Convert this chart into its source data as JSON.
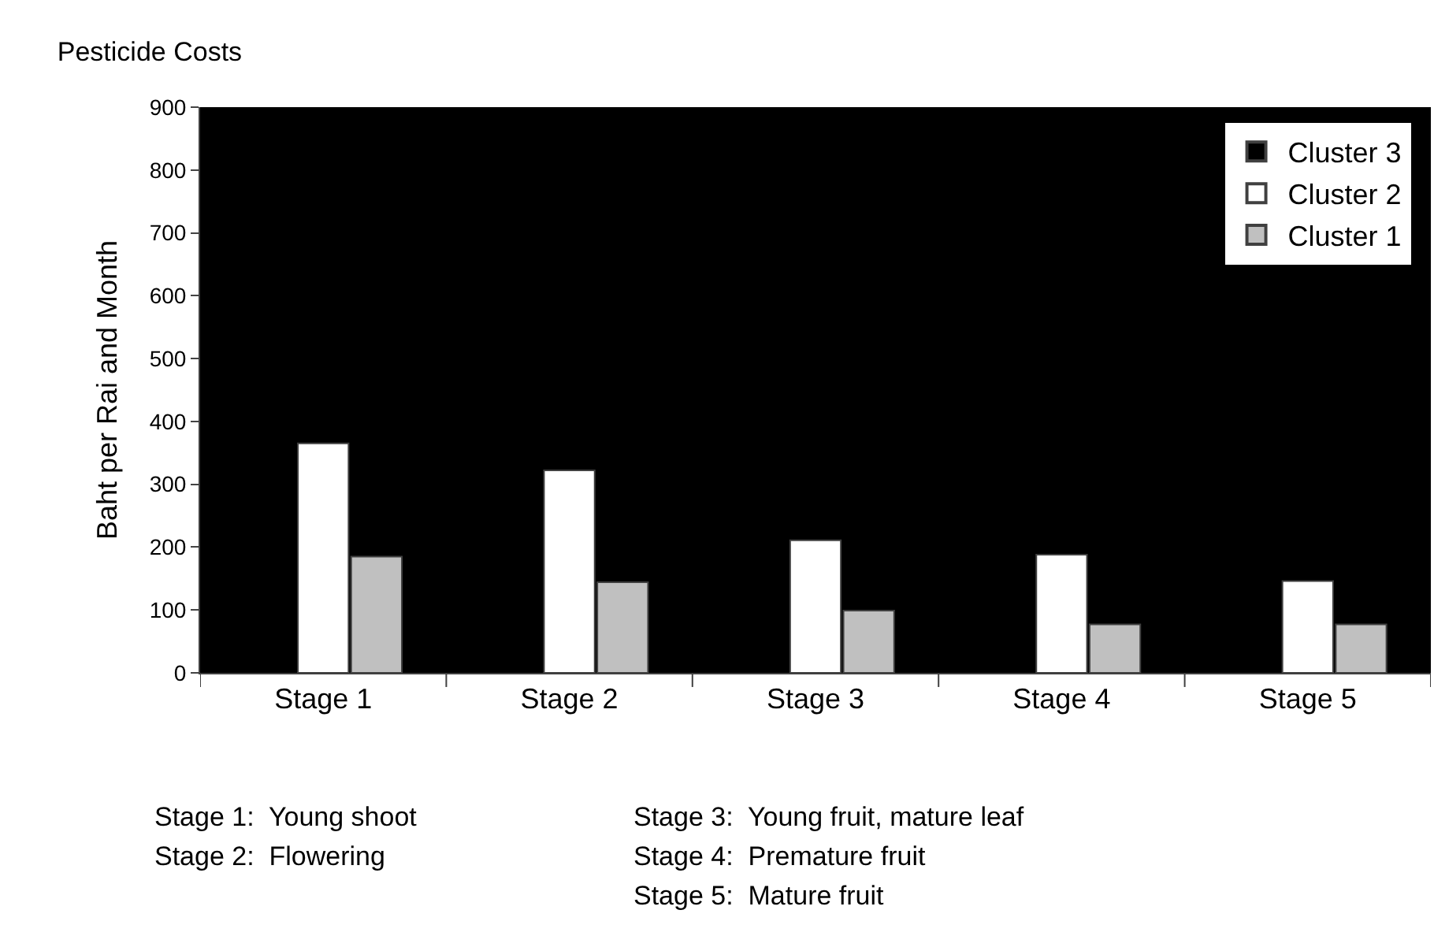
{
  "chart_data": {
    "type": "bar",
    "title": "Pesticide Costs",
    "ylabel": "Baht per Rai and Month",
    "categories": [
      "Stage 1",
      "Stage 2",
      "Stage 3",
      "Stage 4",
      "Stage 5"
    ],
    "series": [
      {
        "name": "Cluster 3",
        "color": "#000000",
        "values": [
          null,
          null,
          null,
          null,
          null
        ]
      },
      {
        "name": "Cluster 2",
        "color": "#ffffff",
        "values": [
          365,
          322,
          211,
          188,
          146
        ]
      },
      {
        "name": "Cluster 1",
        "color": "#c0c0c0",
        "values": [
          185,
          144,
          99,
          77,
          77
        ]
      }
    ],
    "ylim": [
      0,
      900
    ],
    "yticks": [
      0,
      100,
      200,
      300,
      400,
      500,
      600,
      700,
      800,
      900
    ],
    "grid": false,
    "legend": "top right",
    "annotations": [
      "Stage 1:  Young shoot",
      "Stage 2:  Flowering",
      "Stage 3:  Young fruit, mature leaf",
      "Stage 4:  Premature fruit",
      "Stage 5:  Mature fruit"
    ]
  }
}
